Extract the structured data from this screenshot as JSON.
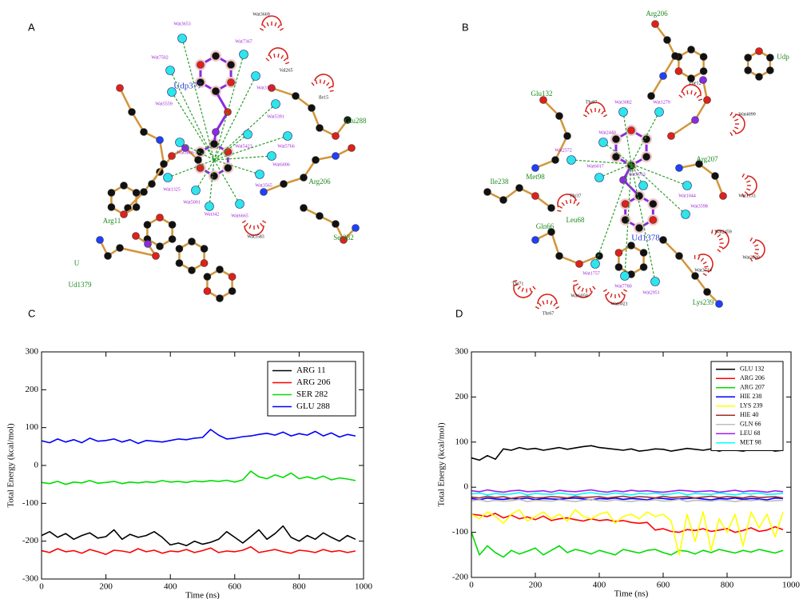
{
  "panel_labels": [
    "A",
    "B",
    "C",
    "D"
  ],
  "diagram_a": {
    "ligand": "Udp377",
    "residues": [
      "Arg11",
      "Glu288",
      "Arg206",
      "Ser282",
      "Ud1379",
      "U"
    ],
    "hydrophobic": [
      "Wat3669",
      "Val265",
      "Ile15",
      "Wat3583"
    ],
    "waters": [
      "Wat3653",
      "Wat7367",
      "Wat7502",
      "Wat3121",
      "Wat5559",
      "Wat5391",
      "Wat5766",
      "Wat5806",
      "Wat5423",
      "Wat6006",
      "Wat1325",
      "Wat5001",
      "Wat3565",
      "Wat342",
      "Wat6665"
    ]
  },
  "diagram_b": {
    "ligand": "Ud1378",
    "residues": [
      "Arg206",
      "Glu132",
      "Met98",
      "Ile238",
      "Gln66",
      "Leu68",
      "Lys239",
      "Arg207",
      "Udp"
    ],
    "contacts": [
      "Thr97",
      "Phe12",
      "Thr37",
      "Thr71",
      "Thr67",
      "Wat6021",
      "Wat6050"
    ],
    "hydrophobic": [
      "Wat4099",
      "Wat1133",
      "Wat2459",
      "Wat3714",
      "Wat3630"
    ],
    "waters": [
      "Wat3082",
      "Wat1279",
      "Wat2440",
      "Wat2572",
      "Wat6017",
      "Wat3013",
      "Wat1044",
      "Wat3598",
      "Wat1757",
      "Wat7780",
      "Wat2951"
    ]
  },
  "chart_data": [
    {
      "type": "line",
      "x_label": "Time (ns)",
      "y_label": "Total Energy (kcal/mol)",
      "xlim": [
        0,
        1000
      ],
      "xticks": [
        0,
        200,
        400,
        600,
        800,
        1000
      ],
      "ylim": [
        -300,
        300
      ],
      "yticks": [
        -300,
        -200,
        -100,
        0,
        100,
        200,
        300
      ],
      "legend": "upper right",
      "x": [
        0,
        25,
        50,
        75,
        100,
        125,
        150,
        175,
        200,
        225,
        250,
        275,
        300,
        325,
        350,
        375,
        400,
        425,
        450,
        475,
        500,
        525,
        550,
        575,
        600,
        625,
        650,
        675,
        700,
        725,
        750,
        775,
        800,
        825,
        850,
        875,
        900,
        925,
        950,
        975
      ],
      "series": [
        {
          "name": "ARG 11",
          "color": "#000000",
          "values": [
            -185,
            -175,
            -190,
            -180,
            -195,
            -185,
            -178,
            -192,
            -188,
            -170,
            -195,
            -182,
            -190,
            -185,
            -175,
            -190,
            -210,
            -205,
            -212,
            -200,
            -208,
            -203,
            -195,
            -175,
            -190,
            -205,
            -188,
            -170,
            -195,
            -180,
            -160,
            -190,
            -200,
            -185,
            -195,
            -178,
            -190,
            -200,
            -185,
            -195
          ]
        },
        {
          "name": "ARG 206",
          "color": "#ff0000",
          "values": [
            -225,
            -230,
            -220,
            -228,
            -225,
            -232,
            -222,
            -228,
            -235,
            -224,
            -226,
            -230,
            -220,
            -228,
            -224,
            -232,
            -226,
            -228,
            -222,
            -230,
            -225,
            -218,
            -230,
            -226,
            -228,
            -224,
            -215,
            -230,
            -226,
            -222,
            -228,
            -232,
            -224,
            -226,
            -230,
            -222,
            -228,
            -225,
            -230,
            -226
          ]
        },
        {
          "name": "SER 282",
          "color": "#00dd00",
          "values": [
            -45,
            -48,
            -42,
            -50,
            -44,
            -46,
            -40,
            -47,
            -45,
            -42,
            -48,
            -44,
            -46,
            -43,
            -45,
            -40,
            -44,
            -42,
            -45,
            -41,
            -43,
            -40,
            -42,
            -39,
            -44,
            -38,
            -15,
            -30,
            -35,
            -25,
            -32,
            -20,
            -35,
            -30,
            -36,
            -28,
            -38,
            -33,
            -36,
            -40
          ]
        },
        {
          "name": "GLU 288",
          "color": "#0000ff",
          "values": [
            65,
            60,
            70,
            62,
            68,
            60,
            72,
            64,
            66,
            70,
            62,
            68,
            58,
            66,
            64,
            62,
            66,
            70,
            68,
            72,
            74,
            95,
            80,
            70,
            72,
            76,
            78,
            82,
            85,
            80,
            88,
            78,
            84,
            80,
            90,
            78,
            86,
            75,
            82,
            78
          ]
        }
      ]
    },
    {
      "type": "line",
      "x_label": "Time (ns)",
      "y_label": "Total Energy (kcal/mol)",
      "xlim": [
        0,
        1000
      ],
      "xticks": [
        0,
        200,
        400,
        600,
        800,
        1000
      ],
      "ylim": [
        -200,
        300
      ],
      "yticks": [
        -200,
        -100,
        0,
        100,
        200,
        300
      ],
      "legend": "upper right",
      "x": [
        0,
        25,
        50,
        75,
        100,
        125,
        150,
        175,
        200,
        225,
        250,
        275,
        300,
        325,
        350,
        375,
        400,
        425,
        450,
        475,
        500,
        525,
        550,
        575,
        600,
        625,
        650,
        675,
        700,
        725,
        750,
        775,
        800,
        825,
        850,
        875,
        900,
        925,
        950,
        975
      ],
      "series": [
        {
          "name": "GLU 132",
          "color": "#000000",
          "values": [
            65,
            60,
            70,
            62,
            85,
            82,
            88,
            84,
            86,
            82,
            85,
            88,
            84,
            87,
            90,
            92,
            88,
            86,
            84,
            82,
            85,
            80,
            82,
            85,
            84,
            80,
            83,
            86,
            84,
            82,
            85,
            80,
            84,
            82,
            80,
            84,
            82,
            85,
            80,
            82
          ]
        },
        {
          "name": "ARG 206",
          "color": "#ff0000",
          "values": [
            -60,
            -62,
            -65,
            -58,
            -68,
            -62,
            -70,
            -66,
            -72,
            -64,
            -74,
            -70,
            -68,
            -72,
            -75,
            -70,
            -74,
            -72,
            -76,
            -74,
            -78,
            -80,
            -78,
            -95,
            -92,
            -98,
            -100,
            -94,
            -96,
            -92,
            -98,
            -95,
            -92,
            -100,
            -96,
            -90,
            -98,
            -95,
            -88,
            -94
          ]
        },
        {
          "name": "ARG 207",
          "color": "#00dd00",
          "values": [
            -100,
            -150,
            -130,
            -145,
            -155,
            -140,
            -148,
            -142,
            -135,
            -150,
            -140,
            -130,
            -145,
            -138,
            -142,
            -148,
            -140,
            -145,
            -150,
            -138,
            -142,
            -146,
            -140,
            -138,
            -145,
            -150,
            -140,
            -142,
            -148,
            -140,
            -145,
            -138,
            -142,
            -146,
            -140,
            -144,
            -138,
            -142,
            -146,
            -140
          ]
        },
        {
          "name": "HIE 238",
          "color": "#0000ff",
          "values": [
            -25,
            -28,
            -24,
            -26,
            -27,
            -25,
            -26,
            -24,
            -28,
            -25,
            -26,
            -27,
            -25,
            -24,
            -26,
            -28,
            -25,
            -26,
            -24,
            -27,
            -25,
            -26,
            -28,
            -24,
            -25,
            -27,
            -26,
            -25,
            -24,
            -26,
            -28,
            -25,
            -26,
            -24,
            -27,
            -25,
            -26,
            -28,
            -24,
            -25
          ]
        },
        {
          "name": "LYS 239",
          "color": "#ffff00",
          "values": [
            -60,
            -70,
            -55,
            -65,
            -80,
            -60,
            -50,
            -75,
            -65,
            -55,
            -70,
            -60,
            -75,
            -50,
            -65,
            -70,
            -60,
            -55,
            -80,
            -65,
            -60,
            -70,
            -55,
            -65,
            -60,
            -75,
            -150,
            -60,
            -120,
            -55,
            -140,
            -70,
            -100,
            -60,
            -130,
            -55,
            -90,
            -60,
            -110,
            -55
          ]
        },
        {
          "name": "HIE 40",
          "color": "#a52a2a",
          "values": [
            -22,
            -24,
            -20,
            -23,
            -21,
            -25,
            -22,
            -20,
            -24,
            -23,
            -21,
            -22,
            -24,
            -20,
            -23,
            -22,
            -21,
            -24,
            -22,
            -20,
            -23,
            -21,
            -22,
            -24,
            -20,
            -23,
            -22,
            -21,
            -24,
            -22,
            -20,
            -23,
            -21,
            -22,
            -24,
            -20,
            -23,
            -22,
            -21,
            -24
          ]
        },
        {
          "name": "GLN 66",
          "color": "#bebebe",
          "values": [
            -30,
            -28,
            -32,
            -29,
            -31,
            -30,
            -27,
            -32,
            -29,
            -30,
            -31,
            -28,
            -30,
            -32,
            -29,
            -27,
            -30,
            -31,
            -28,
            -30,
            -32,
            -29,
            -30,
            -28,
            -31,
            -30,
            -27,
            -32,
            -29,
            -30,
            -31,
            -28,
            -30,
            -32,
            -29,
            -30,
            -28,
            -31,
            -30,
            -29
          ]
        },
        {
          "name": "LEU 68",
          "color": "#a020f0",
          "values": [
            -8,
            -10,
            -6,
            -9,
            -11,
            -8,
            -7,
            -10,
            -9,
            -8,
            -11,
            -7,
            -9,
            -10,
            -8,
            -6,
            -9,
            -11,
            -8,
            -10,
            -7,
            -9,
            -8,
            -10,
            -11,
            -9,
            -7,
            -8,
            -10,
            -9,
            -8,
            -11,
            -9,
            -7,
            -10,
            -8,
            -9,
            -11,
            -8,
            -10
          ]
        },
        {
          "name": "MET 98",
          "color": "#00ffff",
          "values": [
            -15,
            -13,
            -17,
            -14,
            -16,
            -15,
            -12,
            -17,
            -14,
            -15,
            -16,
            -13,
            -15,
            -17,
            -14,
            -12,
            -15,
            -16,
            -13,
            -15,
            -17,
            -14,
            -15,
            -13,
            -16,
            -15,
            -12,
            -17,
            -14,
            -15,
            -16,
            -13,
            -15,
            -17,
            -14,
            -15,
            -13,
            -16,
            -15,
            -14
          ]
        }
      ]
    }
  ]
}
